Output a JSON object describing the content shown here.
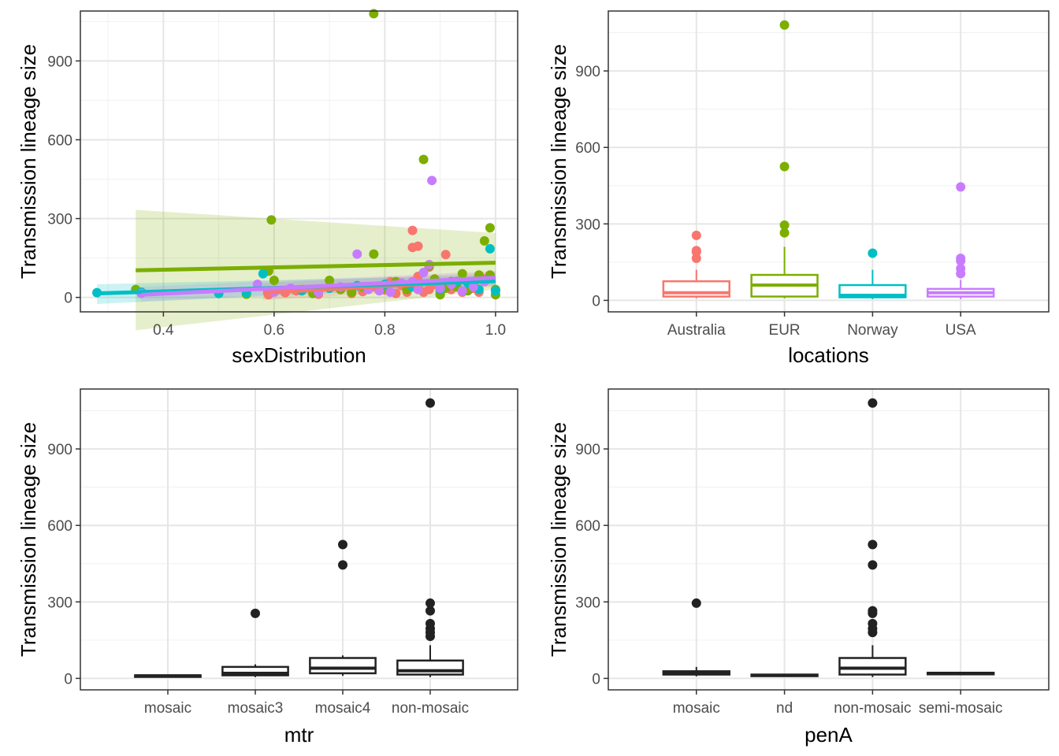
{
  "colors": {
    "Australia": "#F8766D",
    "EUR": "#7CAE00",
    "Norway": "#00BFC4",
    "USA": "#C77CFF",
    "black": "#222222"
  },
  "chart_data": [
    {
      "id": "sex",
      "type": "scatter",
      "xlabel": "sexDistribution",
      "ylabel": "Transmission lineage size",
      "xlim": [
        0.25,
        1.04
      ],
      "ylim": [
        -55,
        1090
      ],
      "xticks": [
        0.4,
        0.6,
        0.8,
        1.0
      ],
      "xtick_labels": [
        "0.4",
        "0.6",
        "0.8",
        "1.0"
      ],
      "yticks": [
        0,
        300,
        600,
        900
      ],
      "grid": true,
      "legend": "none",
      "series": [
        {
          "group": "Australia",
          "points": [
            [
              0.59,
              10
            ],
            [
              0.62,
              18
            ],
            [
              0.64,
              25
            ],
            [
              0.68,
              12
            ],
            [
              0.72,
              30
            ],
            [
              0.74,
              15
            ],
            [
              0.76,
              22
            ],
            [
              0.78,
              40
            ],
            [
              0.8,
              28
            ],
            [
              0.81,
              60
            ],
            [
              0.82,
              15
            ],
            [
              0.83,
              45
            ],
            [
              0.84,
              20
            ],
            [
              0.85,
              255
            ],
            [
              0.85,
              190
            ],
            [
              0.86,
              195
            ],
            [
              0.86,
              80
            ],
            [
              0.87,
              20
            ],
            [
              0.88,
              30
            ],
            [
              0.88,
              115
            ],
            [
              0.89,
              50
            ],
            [
              0.9,
              25
            ],
            [
              0.91,
              163
            ],
            [
              0.92,
              30
            ],
            [
              0.93,
              40
            ],
            [
              0.94,
              20
            ],
            [
              0.95,
              55
            ],
            [
              0.96,
              35
            ],
            [
              0.97,
              20
            ],
            [
              0.98,
              70
            ]
          ],
          "fit": {
            "x": [
              0.58,
              1.0
            ],
            "y": [
              18,
              65
            ],
            "band_lo": [
              -10,
              40
            ],
            "band_hi": [
              55,
              95
            ]
          }
        },
        {
          "group": "EUR",
          "points": [
            [
              0.35,
              30
            ],
            [
              0.55,
              12
            ],
            [
              0.59,
              100
            ],
            [
              0.595,
              295
            ],
            [
              0.6,
              65
            ],
            [
              0.6,
              25
            ],
            [
              0.65,
              30
            ],
            [
              0.67,
              15
            ],
            [
              0.7,
              65
            ],
            [
              0.72,
              30
            ],
            [
              0.74,
              20
            ],
            [
              0.76,
              40
            ],
            [
              0.78,
              165
            ],
            [
              0.78,
              1080
            ],
            [
              0.8,
              35
            ],
            [
              0.82,
              60
            ],
            [
              0.84,
              30
            ],
            [
              0.86,
              35
            ],
            [
              0.87,
              525
            ],
            [
              0.88,
              120
            ],
            [
              0.89,
              70
            ],
            [
              0.9,
              15
            ],
            [
              0.91,
              35
            ],
            [
              0.92,
              60
            ],
            [
              0.93,
              40
            ],
            [
              0.94,
              90
            ],
            [
              0.95,
              25
            ],
            [
              0.96,
              50
            ],
            [
              0.97,
              85
            ],
            [
              0.98,
              215
            ],
            [
              0.99,
              265
            ],
            [
              0.99,
              85
            ],
            [
              1.0,
              30
            ],
            [
              1.0,
              10
            ],
            [
              0.9,
              10
            ]
          ],
          "fit": {
            "x": [
              0.35,
              1.0
            ],
            "y": [
              103,
              132
            ],
            "band_lo": [
              -125,
              30
            ],
            "band_hi": [
              333,
              245
            ]
          }
        },
        {
          "group": "Norway",
          "points": [
            [
              0.28,
              18
            ],
            [
              0.36,
              20
            ],
            [
              0.5,
              15
            ],
            [
              0.55,
              18
            ],
            [
              0.58,
              90
            ],
            [
              0.65,
              25
            ],
            [
              0.7,
              35
            ],
            [
              0.75,
              45
            ],
            [
              0.8,
              50
            ],
            [
              0.85,
              40
            ],
            [
              0.9,
              30
            ],
            [
              0.93,
              60
            ],
            [
              0.95,
              55
            ],
            [
              0.97,
              30
            ],
            [
              0.99,
              185
            ],
            [
              1.0,
              25
            ]
          ],
          "fit": {
            "x": [
              0.28,
              1.0
            ],
            "y": [
              15,
              62
            ],
            "band_lo": [
              -25,
              45
            ],
            "band_hi": [
              50,
              85
            ]
          }
        },
        {
          "group": "USA",
          "points": [
            [
              0.36,
              15
            ],
            [
              0.57,
              50
            ],
            [
              0.6,
              20
            ],
            [
              0.63,
              35
            ],
            [
              0.68,
              20
            ],
            [
              0.72,
              40
            ],
            [
              0.75,
              165
            ],
            [
              0.77,
              30
            ],
            [
              0.79,
              25
            ],
            [
              0.81,
              20
            ],
            [
              0.83,
              55
            ],
            [
              0.85,
              60
            ],
            [
              0.86,
              30
            ],
            [
              0.87,
              95
            ],
            [
              0.88,
              125
            ],
            [
              0.885,
              445
            ],
            [
              0.9,
              35
            ],
            [
              0.92,
              50
            ],
            [
              0.94,
              25
            ],
            [
              0.96,
              40
            ],
            [
              0.98,
              60
            ]
          ],
          "fit": {
            "x": [
              0.36,
              1.0
            ],
            "y": [
              10,
              75
            ],
            "band_lo": [
              -15,
              50
            ],
            "band_hi": [
              40,
              100
            ]
          }
        }
      ]
    },
    {
      "id": "loc",
      "type": "box",
      "xlabel": "locations",
      "ylabel": "Transmission lineage size",
      "categories": [
        "Australia",
        "EUR",
        "Norway",
        "USA"
      ],
      "ylim": [
        -45,
        1135
      ],
      "yticks": [
        0,
        300,
        600,
        900
      ],
      "grid": true,
      "legend": "none",
      "boxes": [
        {
          "group": "Australia",
          "q1": 15,
          "median": 30,
          "q3": 75,
          "lo": 8,
          "hi": 120,
          "outliers": [
            255,
            195,
            190,
            165
          ]
        },
        {
          "group": "EUR",
          "q1": 15,
          "median": 60,
          "q3": 100,
          "lo": 8,
          "hi": 210,
          "outliers": [
            1080,
            525,
            295,
            265
          ]
        },
        {
          "group": "Norway",
          "q1": 12,
          "median": 20,
          "q3": 60,
          "lo": 5,
          "hi": 120,
          "outliers": [
            185
          ]
        },
        {
          "group": "USA",
          "q1": 15,
          "median": 30,
          "q3": 45,
          "lo": 5,
          "hi": 80,
          "outliers": [
            445,
            165,
            155,
            125,
            105
          ]
        }
      ]
    },
    {
      "id": "mtr",
      "type": "box",
      "xlabel": "mtr",
      "ylabel": "Transmission lineage size",
      "categories": [
        "mosaic",
        "mosaic3",
        "mosaic4",
        "non-mosaic"
      ],
      "ylim": [
        -45,
        1135
      ],
      "yticks": [
        0,
        300,
        600,
        900
      ],
      "grid": true,
      "legend": "none",
      "boxes": [
        {
          "group": "black",
          "q1": 8,
          "median": 10,
          "q3": 12,
          "lo": 5,
          "hi": 15,
          "outliers": []
        },
        {
          "group": "black",
          "q1": 12,
          "median": 20,
          "q3": 45,
          "lo": 5,
          "hi": 55,
          "outliers": [
            255
          ]
        },
        {
          "group": "black",
          "q1": 20,
          "median": 40,
          "q3": 80,
          "lo": 10,
          "hi": 90,
          "outliers": [
            525,
            445
          ]
        },
        {
          "group": "black",
          "q1": 15,
          "median": 30,
          "q3": 70,
          "lo": 5,
          "hi": 130,
          "outliers": [
            1080,
            295,
            265,
            215,
            195,
            180,
            165
          ]
        }
      ]
    },
    {
      "id": "pen",
      "type": "box",
      "xlabel": "penA",
      "ylabel": "Transmission lineage size",
      "categories": [
        "mosaic",
        "nd",
        "non-mosaic",
        "semi-mosaic"
      ],
      "ylim": [
        -45,
        1135
      ],
      "yticks": [
        0,
        300,
        600,
        900
      ],
      "grid": true,
      "legend": "none",
      "boxes": [
        {
          "group": "black",
          "q1": 15,
          "median": 20,
          "q3": 28,
          "lo": 8,
          "hi": 45,
          "outliers": [
            295
          ]
        },
        {
          "group": "black",
          "q1": 10,
          "median": 12,
          "q3": 15,
          "lo": 8,
          "hi": 18,
          "outliers": []
        },
        {
          "group": "black",
          "q1": 15,
          "median": 40,
          "q3": 80,
          "lo": 5,
          "hi": 130,
          "outliers": [
            1080,
            525,
            445,
            265,
            255,
            215,
            195,
            180
          ]
        },
        {
          "group": "black",
          "q1": 18,
          "median": 20,
          "q3": 22,
          "lo": 15,
          "hi": 25,
          "outliers": []
        }
      ]
    }
  ]
}
